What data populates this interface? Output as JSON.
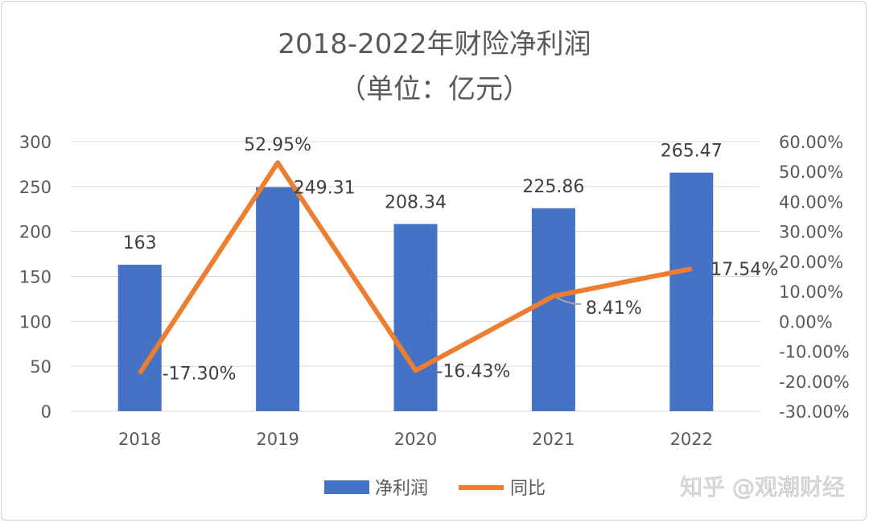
{
  "chart_data": {
    "type": "bar+line",
    "title": "2018-2022年财险净利润",
    "subtitle": "（单位：亿元）",
    "categories": [
      "2018",
      "2019",
      "2020",
      "2021",
      "2022"
    ],
    "series": [
      {
        "name": "净利润",
        "type": "bar",
        "axis": "left",
        "color": "#4472C4",
        "values": [
          163,
          249.31,
          208.34,
          225.86,
          265.47
        ],
        "labels": [
          "163",
          "249.31",
          "208.34",
          "225.86",
          "265.47"
        ]
      },
      {
        "name": "同比",
        "type": "line",
        "axis": "right",
        "color": "#ED7D31",
        "values": [
          -17.3,
          52.95,
          -16.43,
          8.41,
          17.54
        ],
        "labels": [
          "-17.30%",
          "52.95%",
          "-16.43%",
          "8.41%",
          "17.54%"
        ]
      }
    ],
    "y_left": {
      "range": [
        0,
        300
      ],
      "ticks": [
        "0",
        "50",
        "100",
        "150",
        "200",
        "250",
        "300"
      ]
    },
    "y_right": {
      "range": [
        -30,
        60
      ],
      "ticks": [
        "-30.00%",
        "-20.00%",
        "-10.00%",
        "0.00%",
        "10.00%",
        "20.00%",
        "30.00%",
        "40.00%",
        "50.00%",
        "60.00%"
      ]
    },
    "grid": true,
    "legend_placement": "bottom"
  },
  "watermark": "知乎 @观潮财经"
}
